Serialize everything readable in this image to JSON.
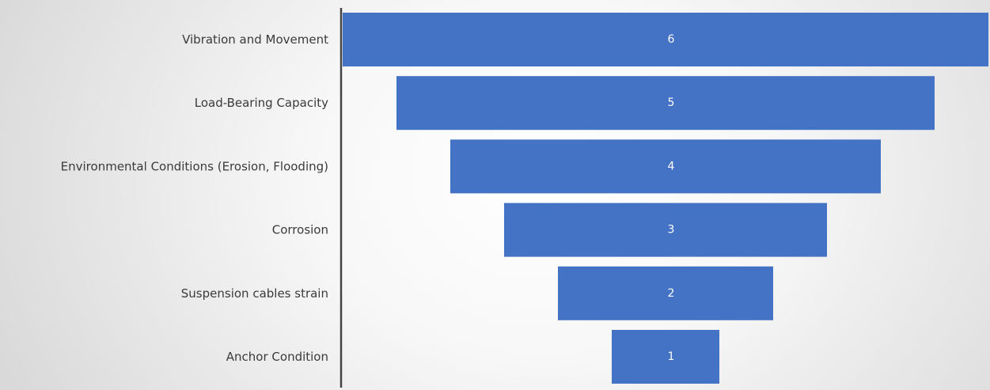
{
  "chart_data": {
    "type": "bar",
    "subtype": "funnel",
    "orientation": "horizontal",
    "categories": [
      "Vibration and Movement",
      "Load-Bearing Capacity",
      "Environmental Conditions (Erosion, Flooding)",
      "Corrosion",
      "Suspension cables strain",
      "Anchor Condition"
    ],
    "values": [
      6,
      5,
      4,
      3,
      2,
      1
    ],
    "data_labels": [
      "6",
      "5",
      "4",
      "3",
      "2",
      "1"
    ],
    "title": "",
    "xlabel": "",
    "ylabel": "",
    "xlim": [
      0,
      6
    ],
    "grid": false,
    "legend": "none",
    "colors": {
      "bar": "#4472c4",
      "data_label": "#ffffff",
      "category_label": "#3a3a3a",
      "axis_line": "#444444"
    }
  }
}
